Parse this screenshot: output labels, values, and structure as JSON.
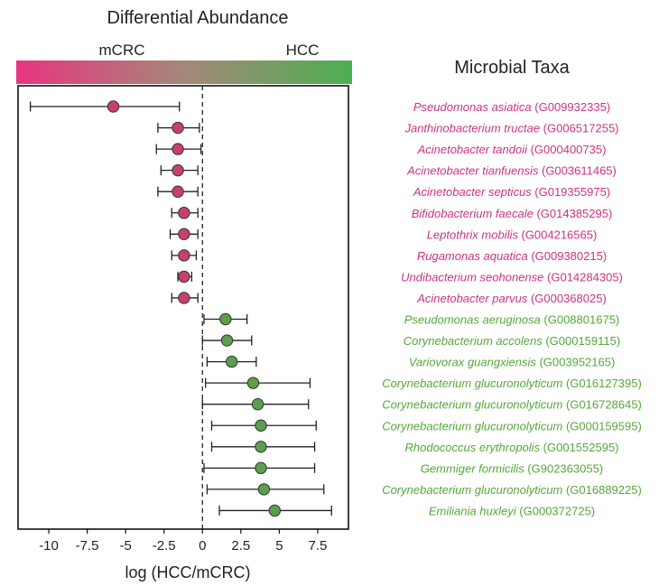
{
  "chart_data": {
    "type": "forest",
    "title": "Differential Abundance",
    "gradient": {
      "left_label": "mCRC",
      "right_label": "HCC",
      "left_color": "#e8357f",
      "right_color": "#4caf50"
    },
    "taxa_title": "Microbial Taxa",
    "xlabel": "log (HCC/mCRC)",
    "xlim": [
      -12,
      9.5
    ],
    "xticks": [
      -10,
      -7.5,
      -5,
      -2.5,
      0,
      2.5,
      5,
      7.5
    ],
    "xtick_labels": [
      "-10",
      "-7.5",
      "-5",
      "-2.5",
      "0",
      "2.5",
      "5",
      "7.5"
    ],
    "zero_line": "dashed",
    "colors": {
      "mCRC": "#c8406e",
      "HCC": "#5b9e4b",
      "taxa_mCRC": "#cc3380",
      "taxa_HCC": "#55a83a"
    },
    "rows": [
      {
        "species": "Pseudomonas asiatica",
        "id": "(G009932335)",
        "group": "mCRC",
        "estimate": -5.8,
        "lower": -11.2,
        "upper": -1.5
      },
      {
        "species": "Janthinobacterium tructae",
        "id": "(G006517255)",
        "group": "mCRC",
        "estimate": -1.6,
        "lower": -2.9,
        "upper": -0.2
      },
      {
        "species": "Acinetobacter tandoii",
        "id": "(G000400735)",
        "group": "mCRC",
        "estimate": -1.6,
        "lower": -3.0,
        "upper": -0.1
      },
      {
        "species": "Acinetobacter tianfuensis",
        "id": "(G003611465)",
        "group": "mCRC",
        "estimate": -1.6,
        "lower": -2.7,
        "upper": -0.3
      },
      {
        "species": "Acinetobacter septicus",
        "id": "(G019355975)",
        "group": "mCRC",
        "estimate": -1.6,
        "lower": -2.9,
        "upper": -0.3
      },
      {
        "species": "Bifidobacterium faecale",
        "id": "(G014385295)",
        "group": "mCRC",
        "estimate": -1.2,
        "lower": -2.0,
        "upper": -0.3
      },
      {
        "species": "Leptothrix mobilis",
        "id": "(G004216565)",
        "group": "mCRC",
        "estimate": -1.2,
        "lower": -2.1,
        "upper": -0.3
      },
      {
        "species": "Rugamonas aquatica",
        "id": "(G009380215)",
        "group": "mCRC",
        "estimate": -1.2,
        "lower": -2.0,
        "upper": -0.4
      },
      {
        "species": "Undibacterium seohonense",
        "id": "(G014284305)",
        "group": "mCRC",
        "estimate": -1.2,
        "lower": -1.6,
        "upper": -0.7
      },
      {
        "species": "Acinetobacter parvus",
        "id": "(G000368025)",
        "group": "mCRC",
        "estimate": -1.2,
        "lower": -2.0,
        "upper": -0.3
      },
      {
        "species": "Pseudomonas aeruginosa",
        "id": "(G008801675)",
        "group": "HCC",
        "estimate": 1.5,
        "lower": 0.1,
        "upper": 2.9
      },
      {
        "species": "Corynebacterium accolens",
        "id": "(G000159115)",
        "group": "HCC",
        "estimate": 1.6,
        "lower": 0.0,
        "upper": 3.2
      },
      {
        "species": "Variovorax guangxiensis",
        "id": "(G003952165)",
        "group": "HCC",
        "estimate": 1.9,
        "lower": 0.3,
        "upper": 3.5
      },
      {
        "species": "Corynebacterium glucuronolyticum",
        "id": "(G016127395)",
        "group": "HCC",
        "estimate": 3.3,
        "lower": 0.2,
        "upper": 7.0
      },
      {
        "species": "Corynebacterium glucuronolyticum",
        "id": "(G016728645)",
        "group": "HCC",
        "estimate": 3.6,
        "lower": 0.0,
        "upper": 6.9
      },
      {
        "species": "Corynebacterium glucuronolyticum",
        "id": "(G000159595)",
        "group": "HCC",
        "estimate": 3.8,
        "lower": 0.6,
        "upper": 7.4
      },
      {
        "species": "Rhodococcus erythropolis",
        "id": "(G001552595)",
        "group": "HCC",
        "estimate": 3.8,
        "lower": 0.6,
        "upper": 7.3
      },
      {
        "species": "Gemmiger formicilis",
        "id": "(G902363055)",
        "group": "HCC",
        "estimate": 3.8,
        "lower": 0.1,
        "upper": 7.3
      },
      {
        "species": "Corynebacterium glucuronolyticum",
        "id": "(G016889225)",
        "group": "HCC",
        "estimate": 4.0,
        "lower": 0.3,
        "upper": 7.9
      },
      {
        "species": "Emiliania huxleyi",
        "id": "(G000372725)",
        "group": "HCC",
        "estimate": 4.7,
        "lower": 1.1,
        "upper": 8.4
      }
    ]
  }
}
